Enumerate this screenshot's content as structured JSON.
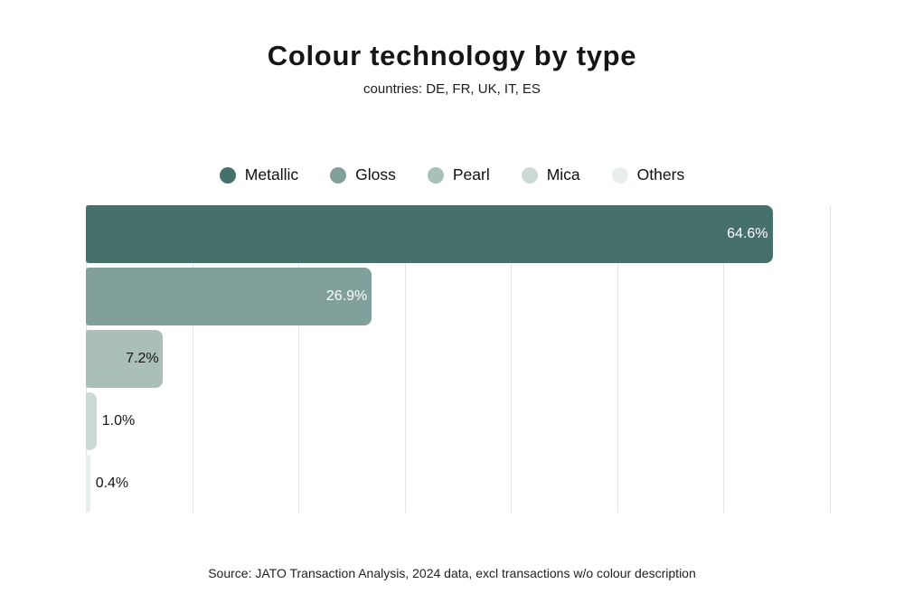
{
  "title": "Colour technology by type",
  "subtitle": "countries: DE, FR, UK, IT, ES",
  "source": "Source: JATO Transaction Analysis, 2024 data, excl transactions w/o colour description",
  "chart_data": {
    "type": "bar",
    "orientation": "horizontal",
    "title": "Colour technology by type",
    "subtitle": "countries: DE, FR, UK, IT, ES",
    "categories": [
      "Metallic",
      "Gloss",
      "Pearl",
      "Mica",
      "Others"
    ],
    "values": [
      64.6,
      26.9,
      7.2,
      1.0,
      0.4
    ],
    "value_labels": [
      "64.6%",
      "26.9%",
      "7.2%",
      "1.0%",
      "0.4%"
    ],
    "label_placement": [
      "inside",
      "inside",
      "inside",
      "outside",
      "outside"
    ],
    "bar_colors": [
      "#46706C",
      "#82A09B",
      "#AABFBA",
      "#CCD9D5",
      "#E8EEEC"
    ],
    "inside_label_color": "#ffffff",
    "outside_label_color": "#151515",
    "xlim": [
      0,
      70
    ],
    "gridlines": [
      0,
      10,
      20,
      30,
      40,
      50,
      60,
      70
    ],
    "gridline_color": "#e3e3e3",
    "grid": true,
    "legend_position": "top",
    "legend": [
      "Metallic",
      "Gloss",
      "Pearl",
      "Mica",
      "Others"
    ]
  }
}
